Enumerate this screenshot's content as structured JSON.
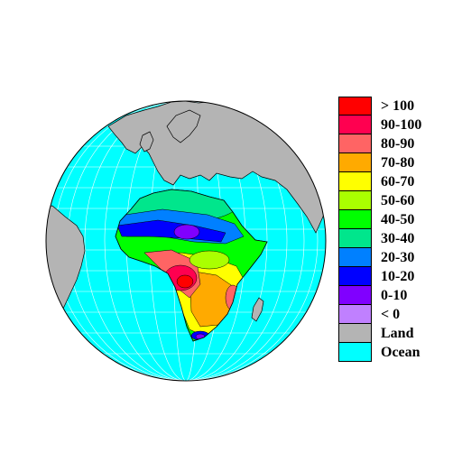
{
  "map": {
    "projection": "orthographic",
    "region": "Africa",
    "background_color": "#ffffff",
    "ocean_color": "#00ffff",
    "land_color": "#b4b4b4",
    "graticule_color": "#ffffff"
  },
  "legend": {
    "entries": [
      {
        "label": "> 100",
        "color": "#ff0000"
      },
      {
        "label": "90-100",
        "color": "#ff0050"
      },
      {
        "label": "80-90",
        "color": "#ff6464"
      },
      {
        "label": "70-80",
        "color": "#ffaa00"
      },
      {
        "label": "60-70",
        "color": "#ffff00"
      },
      {
        "label": "50-60",
        "color": "#aaff00"
      },
      {
        "label": "40-50",
        "color": "#00ff00"
      },
      {
        "label": "30-40",
        "color": "#00e68c"
      },
      {
        "label": "20-30",
        "color": "#0080ff"
      },
      {
        "label": "10-20",
        "color": "#0000ff"
      },
      {
        "label": "0-10",
        "color": "#8000ff"
      },
      {
        "label": "< 0",
        "color": "#c080ff"
      },
      {
        "label": "Land",
        "color": "#b4b4b4"
      },
      {
        "label": "Ocean",
        "color": "#00ffff"
      }
    ]
  }
}
